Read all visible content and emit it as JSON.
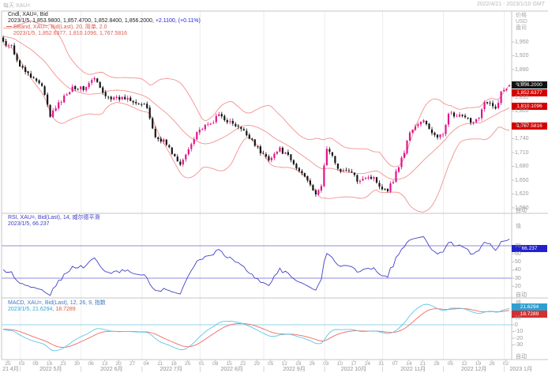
{
  "header": {
    "left": "每天 XAU=",
    "right": "2022/4/21 - 2023/1/10 GMT"
  },
  "main_panel": {
    "legend_line1": "Cndl, XAU=, Bid",
    "legend_ohlc": "2023/1/5, 1,853.9800, 1,857.4700, 1,852.8400, 1,856.2000,",
    "legend_change": " +2.1100, (+0.11%)",
    "legend_bband": "BBand, XAU=, Bid(Last), 20, 简单, 2.0",
    "legend_bb_values": "2023/1/5, 1,852.6377, 1,810.1096, 1,767.5816",
    "axis_title_lines": [
      "价格",
      "USD",
      "盎司"
    ],
    "ticks": [
      {
        "v": 1950,
        "label": "1,950"
      },
      {
        "v": 1920,
        "label": "1,920"
      },
      {
        "v": 1890,
        "label": "1,890"
      },
      {
        "v": 1860,
        "label": "1,860"
      },
      {
        "v": 1830,
        "label": "1,830"
      },
      {
        "v": 1800,
        "label": "1,800"
      },
      {
        "v": 1770,
        "label": "1,770"
      },
      {
        "v": 1740,
        "label": "1,740"
      },
      {
        "v": 1710,
        "label": "1,710"
      },
      {
        "v": 1680,
        "label": "1,680"
      },
      {
        "v": 1650,
        "label": "1,650"
      },
      {
        "v": 1620,
        "label": "1,620"
      },
      {
        "v": 1590,
        "label": "1,590"
      }
    ],
    "auto_label": "自动",
    "badges": {
      "last": "1,856.2000",
      "bb_upper": "1,852.6377",
      "bb_mid": "1,810.1096",
      "bb_lower": "1,767.5816"
    }
  },
  "rsi_panel": {
    "legend_line1": "RSI, XAU=, Bid(Last), 14, 威尔德平滑",
    "legend_line2": "2023/1/5, 66.237",
    "axis_title": "值",
    "ticks": [
      70,
      60,
      50,
      40,
      30,
      20
    ],
    "badge": "66.237",
    "auto_label": "自动"
  },
  "macd_panel": {
    "legend_line1": "MACD, XAU=, Bid(Last), 12, 26, 9, 指数",
    "legend_value_macd": "2023/1/5, 21.6294,",
    "legend_value_signal": " 18.7289",
    "axis_title": "值",
    "ticks": [
      10,
      0,
      -10,
      -20,
      -30
    ],
    "badges": {
      "macd": "21.6294",
      "signal": "18.7289"
    },
    "auto_label": "自动"
  },
  "time_axis": {
    "days": [
      "25",
      "03",
      "09",
      "16",
      "23",
      "30",
      "06",
      "13",
      "20",
      "27",
      "04",
      "11",
      "18",
      "25",
      "01",
      "08",
      "15",
      "22",
      "29",
      "05",
      "12",
      "19",
      "26",
      "03",
      "10",
      "17",
      "24",
      "31",
      "07",
      "14",
      "21",
      "28",
      "05",
      "12",
      "19",
      "26",
      "02"
    ],
    "months": [
      "21 4月",
      "2022 5月",
      "2022 6月",
      "2022 7月",
      "2022 8月",
      "2022 9月",
      "2022 10月",
      "2022 11月",
      "2022 12月",
      "2023 1月"
    ]
  },
  "colors": {
    "candle_up": "#e3148a",
    "candle_down": "#161616",
    "bollinger": "#f29290",
    "rsi_line": "#4343c8",
    "rsi_levels": "#8d8ddc",
    "macd_line": "#5cc6ea",
    "macd_signal": "#ef6a60",
    "macd_zero": "#aadcee",
    "badge_last_bg": "#111111",
    "badge_band_bg": "#d40000",
    "badge_rsi_bg": "#2222cc",
    "badge_macd_bg": "#2f9fd0",
    "badge_signal_bg": "#d43030",
    "grid": "#ececec",
    "frame": "#c4c4c4",
    "tick_text": "#9a9a9a"
  },
  "chart_data": {
    "type": "candlestick",
    "symbol": "XAU=",
    "interval": "daily",
    "date_range": "2022/4/21 - 2023/1/10 GMT",
    "bar_count": 184,
    "close_anchors": [
      [
        0,
        1948
      ],
      [
        3,
        1942
      ],
      [
        6,
        1897
      ],
      [
        10,
        1877
      ],
      [
        14,
        1853
      ],
      [
        17,
        1790
      ],
      [
        20,
        1815
      ],
      [
        25,
        1853
      ],
      [
        29,
        1848
      ],
      [
        33,
        1871
      ],
      [
        36,
        1839
      ],
      [
        40,
        1826
      ],
      [
        45,
        1829
      ],
      [
        49,
        1817
      ],
      [
        52,
        1807
      ],
      [
        55,
        1742
      ],
      [
        58,
        1736
      ],
      [
        61,
        1710
      ],
      [
        64,
        1681
      ],
      [
        67,
        1718
      ],
      [
        70,
        1756
      ],
      [
        75,
        1772
      ],
      [
        78,
        1792
      ],
      [
        82,
        1775
      ],
      [
        86,
        1760
      ],
      [
        90,
        1738
      ],
      [
        93,
        1710
      ],
      [
        96,
        1697
      ],
      [
        100,
        1717
      ],
      [
        103,
        1701
      ],
      [
        106,
        1675
      ],
      [
        109,
        1660
      ],
      [
        111,
        1644
      ],
      [
        113,
        1615
      ],
      [
        115,
        1640
      ],
      [
        117,
        1720
      ],
      [
        119,
        1700
      ],
      [
        122,
        1668
      ],
      [
        125,
        1672
      ],
      [
        128,
        1650
      ],
      [
        131,
        1658
      ],
      [
        134,
        1654
      ],
      [
        137,
        1633
      ],
      [
        139,
        1630
      ],
      [
        141,
        1650
      ],
      [
        143,
        1682
      ],
      [
        145,
        1712
      ],
      [
        147,
        1755
      ],
      [
        150,
        1772
      ],
      [
        152,
        1778
      ],
      [
        155,
        1754
      ],
      [
        157,
        1740
      ],
      [
        159,
        1750
      ],
      [
        161,
        1798
      ],
      [
        163,
        1788
      ],
      [
        165,
        1789
      ],
      [
        168,
        1781
      ],
      [
        170,
        1777
      ],
      [
        172,
        1790
      ],
      [
        174,
        1818
      ],
      [
        176,
        1814
      ],
      [
        178,
        1804
      ],
      [
        180,
        1840
      ],
      [
        182,
        1850
      ],
      [
        183,
        1856.2
      ]
    ],
    "last_bar": {
      "date": "2023/1/5",
      "open": 1853.98,
      "high": 1857.47,
      "low": 1852.84,
      "close": 1856.2,
      "change": "+2.1100",
      "change_pct": "+0.11%"
    },
    "indicators": {
      "bollinger": {
        "period": 20,
        "stdev": 2,
        "ma_type": "简单",
        "last_upper": 1852.6377,
        "last_middle": 1810.1096,
        "last_lower": 1767.5816
      },
      "rsi": {
        "period": 14,
        "smoothing": "威尔德平滑",
        "last": 66.237,
        "levels": [
          70,
          30
        ]
      },
      "macd": {
        "fast": 12,
        "slow": 26,
        "signal": 9,
        "ma_type": "指数",
        "last_macd": 21.6294,
        "last_signal": 18.7289
      }
    },
    "main_ylim": [
      1578,
      2017
    ],
    "rsi_levels_y": {
      "70": 311,
      "30": 352
    },
    "month_start_indices": [
      7,
      29,
      51,
      72,
      95,
      117,
      138,
      160,
      182
    ]
  }
}
